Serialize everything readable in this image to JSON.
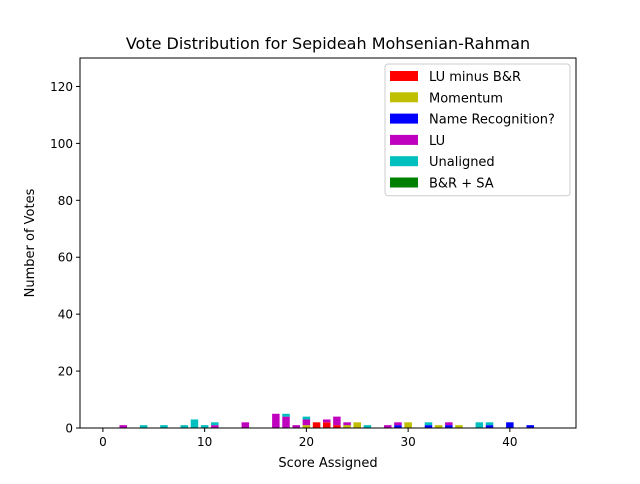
{
  "chart_data": {
    "type": "bar",
    "stacked": true,
    "title": "Vote Distribution for Sepideah Mohsenian-Rahman",
    "xlabel": "Score Assigned",
    "ylabel": "Number of Votes",
    "xlim": [
      -2.25,
      46.5
    ],
    "ylim": [
      0,
      130
    ],
    "xticks": [
      0,
      10,
      20,
      30,
      40
    ],
    "yticks": [
      0,
      20,
      40,
      60,
      80,
      100,
      120
    ],
    "grid": false,
    "legend_position": "top-right",
    "series": [
      {
        "name": "LU minus B&R",
        "color": "#ff0000",
        "points": [
          {
            "x": 21,
            "y": 2
          },
          {
            "x": 22,
            "y": 2
          },
          {
            "x": 23,
            "y": 1
          }
        ]
      },
      {
        "name": "Momentum",
        "color": "#bfbf00",
        "points": [
          {
            "x": 20,
            "y": 1
          },
          {
            "x": 24,
            "y": 1
          },
          {
            "x": 25,
            "y": 2
          },
          {
            "x": 30,
            "y": 2
          },
          {
            "x": 33,
            "y": 1
          },
          {
            "x": 35,
            "y": 1
          }
        ]
      },
      {
        "name": "Name Recognition?",
        "color": "#0000ff",
        "points": [
          {
            "x": 29,
            "y": 1
          },
          {
            "x": 32,
            "y": 1
          },
          {
            "x": 34,
            "y": 1
          },
          {
            "x": 38,
            "y": 1
          },
          {
            "x": 40,
            "y": 2
          },
          {
            "x": 42,
            "y": 1
          }
        ]
      },
      {
        "name": "LU",
        "color": "#bf00bf",
        "points": [
          {
            "x": 2,
            "y": 1
          },
          {
            "x": 11,
            "y": 1
          },
          {
            "x": 14,
            "y": 2
          },
          {
            "x": 17,
            "y": 5
          },
          {
            "x": 18,
            "y": 4
          },
          {
            "x": 19,
            "y": 1
          },
          {
            "x": 20,
            "y": 2
          },
          {
            "x": 22,
            "y": 1
          },
          {
            "x": 23,
            "y": 3
          },
          {
            "x": 24,
            "y": 1
          },
          {
            "x": 28,
            "y": 1
          },
          {
            "x": 29,
            "y": 1
          },
          {
            "x": 34,
            "y": 1
          }
        ]
      },
      {
        "name": "Unaligned",
        "color": "#00bfbf",
        "points": [
          {
            "x": 4,
            "y": 1
          },
          {
            "x": 6,
            "y": 1
          },
          {
            "x": 8,
            "y": 1
          },
          {
            "x": 9,
            "y": 3
          },
          {
            "x": 10,
            "y": 1
          },
          {
            "x": 11,
            "y": 1
          },
          {
            "x": 18,
            "y": 1
          },
          {
            "x": 20,
            "y": 1
          },
          {
            "x": 26,
            "y": 1
          },
          {
            "x": 32,
            "y": 1
          },
          {
            "x": 37,
            "y": 2
          },
          {
            "x": 38,
            "y": 1
          }
        ]
      },
      {
        "name": "B&R + SA",
        "color": "#008000",
        "points": []
      }
    ]
  }
}
